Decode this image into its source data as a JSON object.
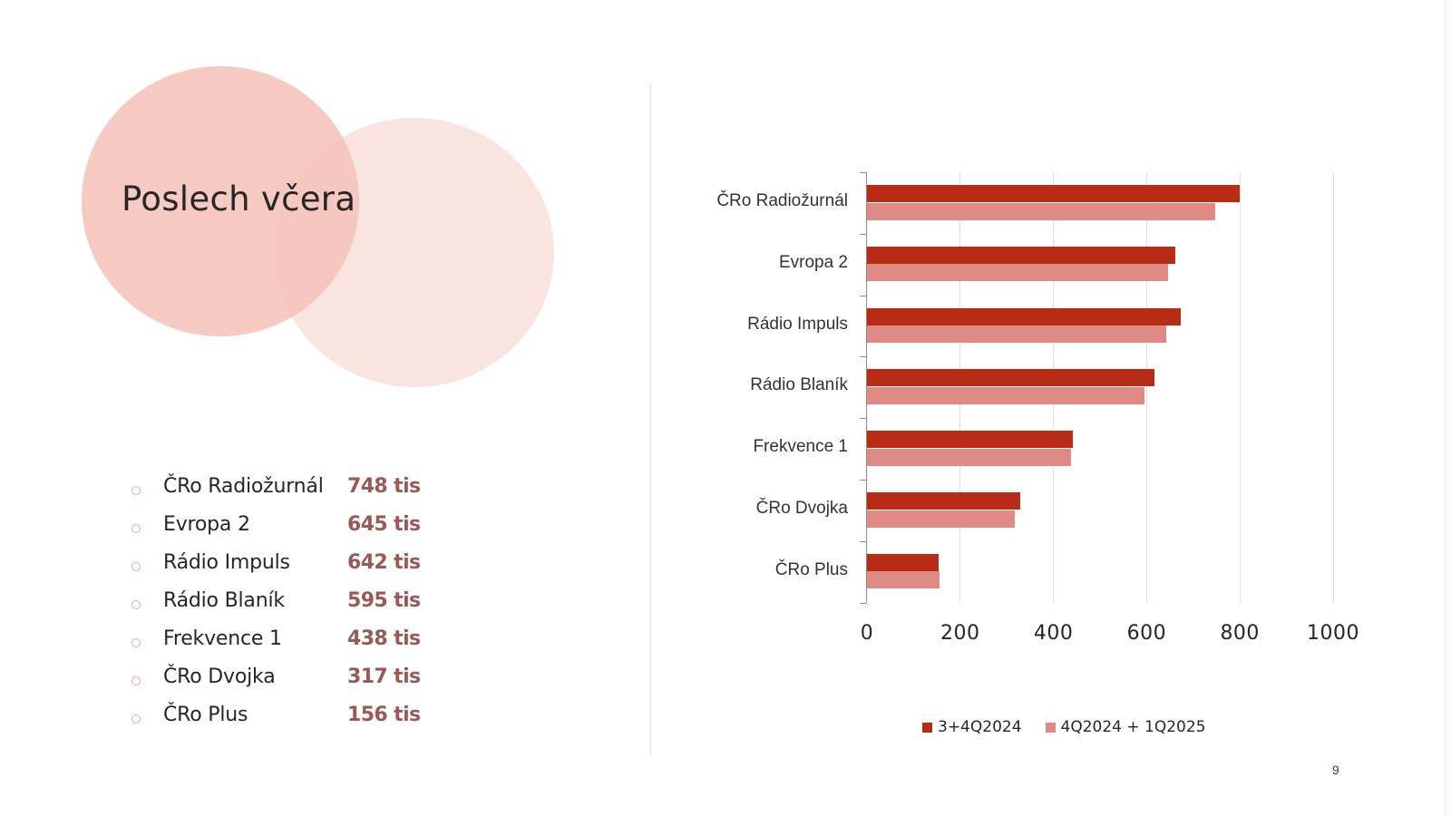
{
  "slide": {
    "title": "Poslech včera",
    "page_number": "9"
  },
  "list": {
    "items": [
      {
        "label": "ČRo Radiožurnál",
        "value": "748 tis"
      },
      {
        "label": "Evropa 2",
        "value": "645 tis"
      },
      {
        "label": "Rádio Impuls",
        "value": "642 tis"
      },
      {
        "label": "Rádio Blaník",
        "value": "595 tis"
      },
      {
        "label": "Frekvence 1",
        "value": "438 tis"
      },
      {
        "label": "ČRo Dvojka",
        "value": "317 tis"
      },
      {
        "label": "ČRo Plus",
        "value": "156 tis"
      }
    ]
  },
  "colors": {
    "series_1": "#b82b14",
    "series_2": "#e08a85",
    "value_text": "#9a5954",
    "circle_primary": "#f4c3b9",
    "circle_secondary": "#fae2dd"
  },
  "chart_data": {
    "type": "bar",
    "orientation": "horizontal",
    "title": "",
    "xlabel": "",
    "ylabel": "",
    "categories": [
      "ČRo Radiožurnál",
      "Evropa 2",
      "Rádio Impuls",
      "Rádio Blaník",
      "Frekvence 1",
      "ČRo Dvojka",
      "ČRo Plus"
    ],
    "series": [
      {
        "name": "3+4Q2024",
        "color": "#b82b14",
        "values": [
          800,
          661,
          673,
          616,
          442,
          328,
          154
        ]
      },
      {
        "name": "4Q2024 + 1Q2025",
        "color": "#e08a85",
        "values": [
          748,
          645,
          642,
          595,
          438,
          317,
          156
        ]
      }
    ],
    "xlim": [
      0,
      1000
    ],
    "xticks": [
      "0",
      "200",
      "400",
      "600",
      "800",
      "1000"
    ],
    "grid": true,
    "legend_position": "bottom"
  }
}
